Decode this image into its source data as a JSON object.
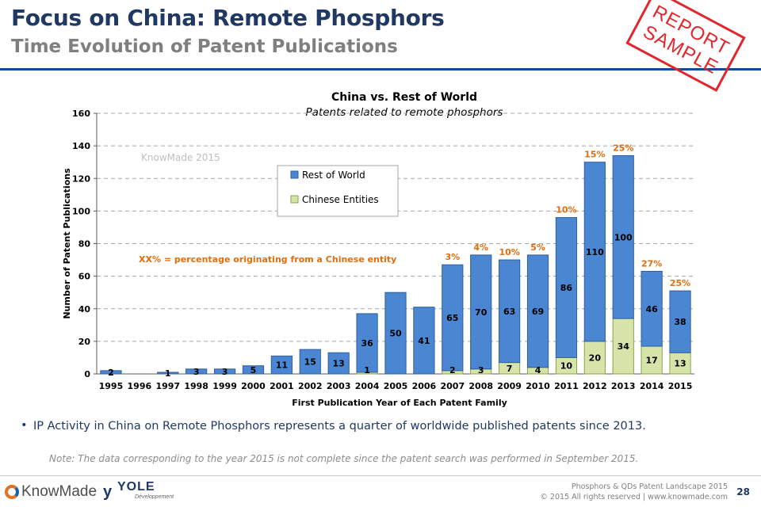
{
  "slide": {
    "title": "Focus on China: Remote Phosphors",
    "subtitle": "Time Evolution of Patent Publications",
    "stamp_line1": "REPORT",
    "stamp_line2": "SAMPLE",
    "bullet": "IP Activity in China on Remote Phosphors represents a quarter of worldwide published patents since 2013.",
    "note": "Note: The data corresponding to the year 2015 is not complete since the patent search was performed in September 2015.",
    "footer_line1": "Phosphors & QDs Patent Landscape 2015",
    "footer_line2": "© 2015 All rights reserved | www.knowmade.com",
    "page_number": "28",
    "logo_knowmade": "KnowMade",
    "logo_yole": "YOLE",
    "logo_yole_sub": "Développement",
    "logo_yole_mark": "y"
  },
  "chart_data": {
    "type": "bar",
    "stacked": true,
    "title": "China vs. Rest of World",
    "subtitle": "Patents related to remote phosphors",
    "xlabel": "First Publication Year of Each Patent Family",
    "ylabel": "Number of Patent Publications",
    "ylim": [
      0,
      160
    ],
    "yticks": [
      0,
      20,
      40,
      60,
      80,
      100,
      120,
      140,
      160
    ],
    "grid": true,
    "legend_position": "top-center",
    "watermark": "KnowMade 2015",
    "annotation": "XX% = percentage originating from a Chinese entity",
    "categories": [
      "1995",
      "1996",
      "1997",
      "1998",
      "1999",
      "2000",
      "2001",
      "2002",
      "2003",
      "2004",
      "2005",
      "2006",
      "2007",
      "2008",
      "2009",
      "2010",
      "2011",
      "2012",
      "2013",
      "2014",
      "2015"
    ],
    "series": [
      {
        "name": "Chinese Entities",
        "color": "#d7e4a9",
        "values": [
          0,
          0,
          0,
          0,
          0,
          0,
          0,
          0,
          0,
          1,
          0,
          0,
          2,
          3,
          7,
          4,
          10,
          20,
          34,
          17,
          13
        ]
      },
      {
        "name": "Rest of World",
        "color": "#4a86d1",
        "values": [
          2,
          0,
          1,
          3,
          3,
          5,
          11,
          15,
          13,
          36,
          50,
          41,
          65,
          70,
          63,
          69,
          86,
          110,
          100,
          46,
          38
        ]
      }
    ],
    "percent_labels": [
      "",
      "",
      "",
      "",
      "",
      "",
      "",
      "",
      "",
      "",
      "",
      "",
      "3%",
      "4%",
      "10%",
      "5%",
      "10%",
      "15%",
      "25%",
      "27%",
      "25%"
    ],
    "colors": {
      "rest_of_world": "#4a86d1",
      "chinese": "#d7e4a9",
      "percent_text": "#e46c0a",
      "title_text": "#1f3864"
    }
  }
}
